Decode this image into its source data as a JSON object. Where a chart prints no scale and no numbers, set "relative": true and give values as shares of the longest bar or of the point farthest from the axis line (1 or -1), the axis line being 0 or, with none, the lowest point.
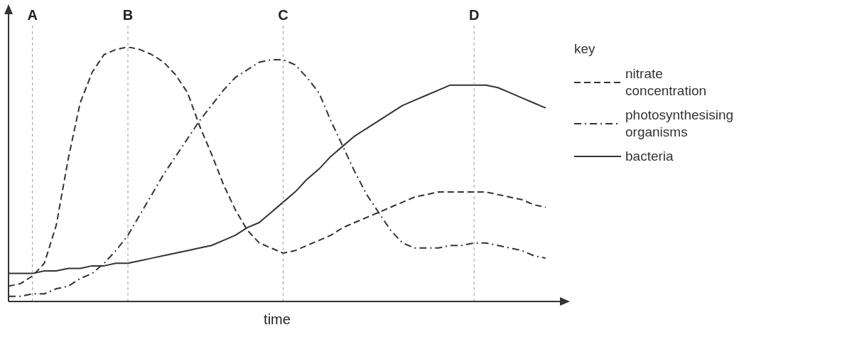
{
  "chart_data": {
    "type": "line",
    "relative": true,
    "xlabel": "time",
    "legend_title": "key",
    "legend": "right",
    "tick_labels": "x",
    "marker": "none",
    "categories": [
      null,
      null,
      "A",
      null,
      null,
      null,
      null,
      null,
      null,
      null,
      "B",
      null,
      null,
      null,
      null,
      null,
      null,
      null,
      null,
      null,
      null,
      null,
      null,
      "C",
      null,
      null,
      null,
      null,
      null,
      null,
      null,
      null,
      null,
      null,
      null,
      null,
      null,
      null,
      null,
      "D",
      null,
      null,
      null,
      null,
      null,
      null
    ],
    "series": [
      {
        "name": "nitrate concentration",
        "color": "#333333",
        "line_style": "dashed",
        "values": [
          0.06,
          0.07,
          0.1,
          0.15,
          0.3,
          0.56,
          0.78,
          0.9,
          0.97,
          0.99,
          1,
          0.99,
          0.97,
          0.94,
          0.89,
          0.82,
          0.69,
          0.58,
          0.46,
          0.36,
          0.28,
          0.23,
          0.21,
          0.19,
          0.2,
          0.22,
          0.24,
          0.26,
          0.29,
          0.31,
          0.33,
          0.35,
          0.37,
          0.39,
          0.41,
          0.42,
          0.43,
          0.43,
          0.43,
          0.43,
          0.43,
          0.42,
          0.41,
          0.4,
          0.38,
          0.37
        ]
      },
      {
        "name": "photosynthesising organisms",
        "color": "#333333",
        "line_style": "dashdot",
        "values": [
          0.02,
          0.02,
          0.03,
          0.03,
          0.05,
          0.06,
          0.09,
          0.11,
          0.15,
          0.2,
          0.26,
          0.34,
          0.42,
          0.5,
          0.57,
          0.64,
          0.71,
          0.77,
          0.83,
          0.88,
          0.91,
          0.94,
          0.95,
          0.95,
          0.93,
          0.88,
          0.82,
          0.71,
          0.61,
          0.51,
          0.42,
          0.35,
          0.28,
          0.23,
          0.21,
          0.21,
          0.21,
          0.22,
          0.22,
          0.23,
          0.23,
          0.22,
          0.21,
          0.2,
          0.18,
          0.17
        ]
      },
      {
        "name": "bacteria",
        "color": "#333333",
        "line_style": "solid",
        "values": [
          0.11,
          0.11,
          0.11,
          0.12,
          0.12,
          0.13,
          0.13,
          0.14,
          0.14,
          0.15,
          0.15,
          0.16,
          0.17,
          0.18,
          0.19,
          0.2,
          0.21,
          0.22,
          0.24,
          0.26,
          0.29,
          0.31,
          0.35,
          0.39,
          0.43,
          0.48,
          0.52,
          0.57,
          0.61,
          0.65,
          0.68,
          0.71,
          0.74,
          0.77,
          0.79,
          0.81,
          0.83,
          0.85,
          0.85,
          0.85,
          0.85,
          0.84,
          0.82,
          0.8,
          0.78,
          0.76
        ]
      }
    ],
    "ref_lines": [
      {
        "axis": "x",
        "value": "A",
        "line_style": "dashed",
        "color": "#999999"
      },
      {
        "axis": "x",
        "value": "B",
        "line_style": "dashed",
        "color": "#999999"
      },
      {
        "axis": "x",
        "value": "C",
        "line_style": "dashed",
        "color": "#999999"
      },
      {
        "axis": "x",
        "value": "D",
        "line_style": "dashed",
        "color": "#999999"
      }
    ]
  }
}
